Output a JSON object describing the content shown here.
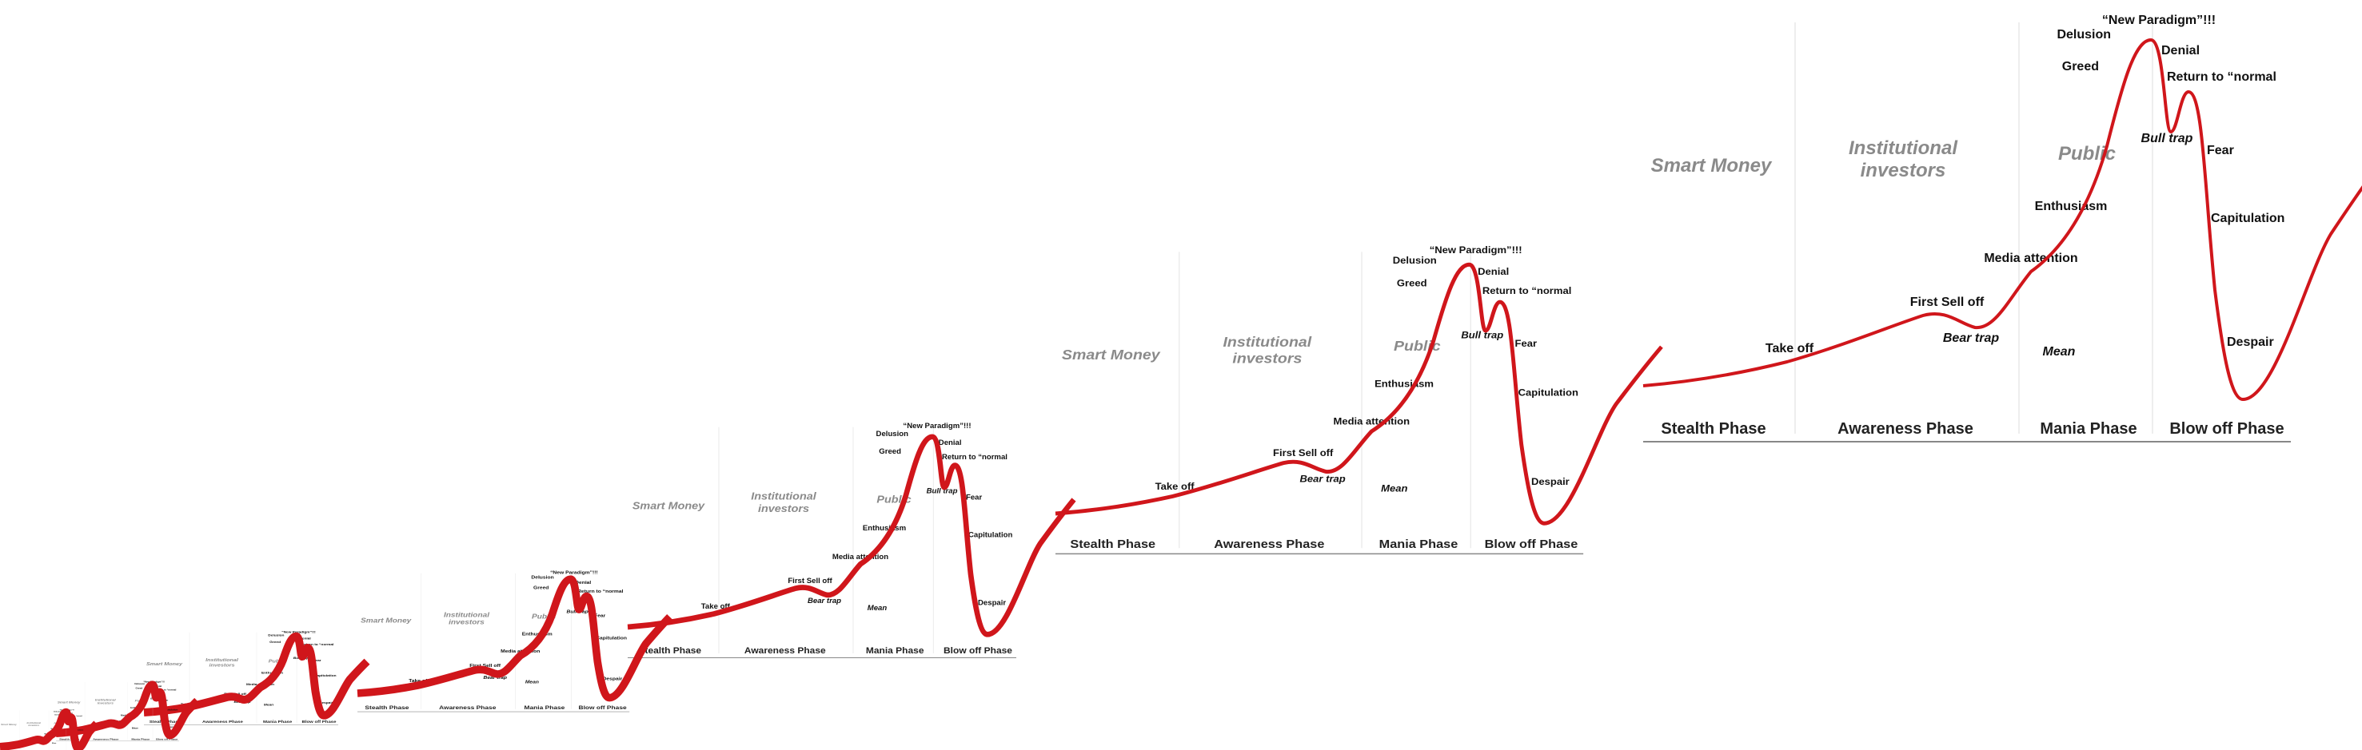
{
  "phases": [
    "Stealth Phase",
    "Awareness Phase",
    "Mania Phase",
    "Blow off Phase"
  ],
  "actors": [
    "Smart Money",
    "Institutional",
    "investors",
    "Public"
  ],
  "events": [
    "Take off",
    "First Sell off",
    "Bear trap",
    "Media attention",
    "Mean",
    "Enthusiasm",
    "Greed",
    "Delusion",
    "“New Paradigm”!!!",
    "Denial",
    "Return to “normal",
    "Bull trap",
    "Fear",
    "Capitulation",
    "Despair"
  ]
}
